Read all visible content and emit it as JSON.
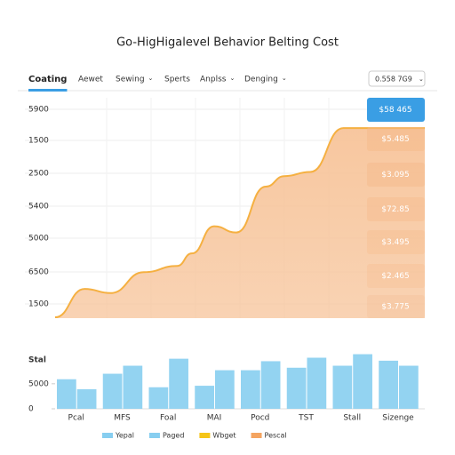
{
  "title": "Go-HigHigalevel Behavior Belting Cost",
  "tabs": [
    "Coating",
    "Aewet",
    "Sewing",
    "Sperts",
    "Anplss",
    "Denging"
  ],
  "dropdown": "0.558 7G9",
  "chart_data": [
    {
      "type": "area",
      "color": "#f5b041",
      "fill": "#f7c49a",
      "axis_labels": [
        "5900",
        "1500",
        "2500",
        "5400",
        "5000",
        "6500",
        "1500"
      ],
      "x": [
        0,
        8,
        15,
        24,
        33,
        37,
        43,
        49,
        57,
        62,
        69,
        78,
        100
      ],
      "values": [
        0.4,
        14,
        12,
        22,
        25,
        31,
        44,
        41,
        63,
        68,
        70,
        91,
        91
      ],
      "xlim": [
        0,
        100
      ],
      "ylim": [
        0,
        100
      ],
      "value_boxes": [
        "$58 465",
        "$5.485",
        "$3.095",
        "$72.85",
        "$3.495",
        "$2.465",
        "$3.775"
      ]
    },
    {
      "type": "bar",
      "axis_label": "Stal",
      "categories": [
        "Pcal",
        "MFS",
        "Foal",
        "MAI",
        "Pocd",
        "TST",
        "Stall",
        "Sizenge"
      ],
      "series": [
        {
          "name": "Yepal",
          "color": "#87cef0",
          "values": [
            5900,
            7000,
            4300,
            4600,
            7700,
            8200,
            8600,
            9600
          ]
        },
        {
          "name": "Paged",
          "color": "#87cef0",
          "values": [
            3900,
            8600,
            10000,
            7700,
            9500,
            10200,
            10900,
            8600
          ]
        }
      ],
      "ylim": [
        0,
        11000
      ],
      "yticks": [
        0,
        5000
      ],
      "legend_extra": [
        {
          "name": "Wbget",
          "color": "#f5c518"
        },
        {
          "name": "Pescal",
          "color": "#f4a460"
        }
      ]
    }
  ]
}
